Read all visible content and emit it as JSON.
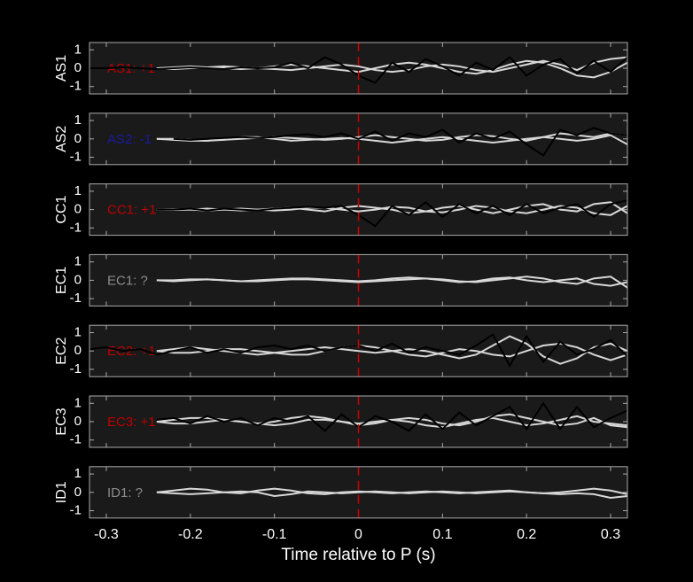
{
  "chart_data": [
    {
      "type": "line",
      "ylabel": "AS1",
      "annotation": "AS1: +1",
      "annotation_color": "#c00000",
      "x": [
        -0.32,
        -0.3,
        -0.28,
        -0.26,
        -0.24,
        -0.22,
        -0.2,
        -0.18,
        -0.16,
        -0.14,
        -0.12,
        -0.1,
        -0.08,
        -0.06,
        -0.04,
        -0.02,
        0,
        0.02,
        0.04,
        0.06,
        0.08,
        0.1,
        0.12,
        0.14,
        0.16,
        0.18,
        0.2,
        0.22,
        0.24,
        0.26,
        0.28,
        0.3,
        0.32
      ],
      "xlim": [
        -0.32,
        0.32
      ],
      "xticks": [
        -0.3,
        -0.2,
        -0.1,
        0,
        0.1,
        0.2,
        0.3
      ],
      "ylim": [
        -1.4,
        1.4
      ],
      "yticks": [
        1,
        0,
        -1
      ],
      "vline": 0,
      "vline_color": "#cc0000",
      "series": [
        {
          "color": "#d8d8d8",
          "values": [
            null,
            null,
            null,
            null,
            0,
            0.05,
            0.1,
            0.05,
            0,
            -0.05,
            0,
            0.1,
            0.2,
            0.1,
            0,
            -0.1,
            -0.2,
            0,
            0.2,
            0.3,
            0.2,
            0,
            -0.2,
            -0.3,
            -0.1,
            0.2,
            0.4,
            0.3,
            0,
            -0.4,
            -0.5,
            -0.2,
            0.3
          ]
        },
        {
          "color": "#d8d8d8",
          "values": [
            null,
            null,
            null,
            null,
            0,
            -0.05,
            0,
            0.05,
            0.1,
            0.05,
            0,
            -0.05,
            -0.1,
            0,
            0.1,
            0.2,
            0.1,
            -0.1,
            -0.2,
            -0.1,
            0.1,
            0.2,
            0.1,
            -0.1,
            -0.2,
            0,
            0.2,
            0.4,
            0.2,
            -0.1,
            0.3,
            0.5,
            0.6
          ]
        },
        {
          "color": "#000000",
          "values": [
            0,
            0,
            0.05,
            0,
            -0.05,
            0,
            0.05,
            0,
            -0.05,
            0.05,
            0,
            0.05,
            0.3,
            0,
            0.6,
            0.2,
            -0.4,
            -0.8,
            0.3,
            -0.2,
            0.5,
            0.1,
            -0.4,
            0.3,
            -0.1,
            0.6,
            -0.4,
            0.2,
            0.5,
            -0.3,
            0.4,
            -0.2,
            0.6
          ]
        }
      ]
    },
    {
      "type": "line",
      "ylabel": "AS2",
      "annotation": "AS2: -1",
      "annotation_color": "#1a1aa0",
      "x": [
        -0.32,
        -0.3,
        -0.28,
        -0.26,
        -0.24,
        -0.22,
        -0.2,
        -0.18,
        -0.16,
        -0.14,
        -0.12,
        -0.1,
        -0.08,
        -0.06,
        -0.04,
        -0.02,
        0,
        0.02,
        0.04,
        0.06,
        0.08,
        0.1,
        0.12,
        0.14,
        0.16,
        0.18,
        0.2,
        0.22,
        0.24,
        0.26,
        0.28,
        0.3,
        0.32
      ],
      "xlim": [
        -0.32,
        0.32
      ],
      "xticks": [
        -0.3,
        -0.2,
        -0.1,
        0,
        0.1,
        0.2,
        0.3
      ],
      "ylim": [
        -1.4,
        1.4
      ],
      "yticks": [
        1,
        0,
        -1
      ],
      "vline": 0,
      "vline_color": "#cc0000",
      "series": [
        {
          "color": "#d8d8d8",
          "values": [
            null,
            null,
            null,
            null,
            0,
            0,
            -0.05,
            -0.1,
            -0.05,
            0,
            0.05,
            0.1,
            0.05,
            0,
            -0.05,
            0,
            0.1,
            0.2,
            0.1,
            0,
            -0.1,
            -0.05,
            0.1,
            0.2,
            0.15,
            0,
            -0.1,
            0.1,
            0.3,
            0.2,
            0.1,
            0.3,
            0.2
          ]
        },
        {
          "color": "#d8d8d8",
          "values": [
            null,
            null,
            null,
            null,
            0,
            -0.05,
            -0.1,
            -0.1,
            0,
            0.1,
            0.1,
            0,
            -0.1,
            -0.05,
            0,
            0.05,
            0,
            -0.1,
            -0.2,
            -0.1,
            0,
            0.1,
            0,
            -0.1,
            -0.2,
            -0.1,
            0,
            0.1,
            0,
            -0.1,
            0,
            0.2,
            -0.3
          ]
        },
        {
          "color": "#000000",
          "values": [
            null,
            null,
            null,
            null,
            null,
            0,
            -0.05,
            0,
            0.05,
            0.1,
            0.05,
            0.1,
            0.2,
            0.25,
            0.1,
            0.3,
            0,
            0.4,
            -0.1,
            0.3,
            0.1,
            0.5,
            -0.2,
            0.3,
            0,
            0.4,
            -0.3,
            -0.9,
            0.5,
            0.2,
            0.6,
            0.3,
            0.2
          ]
        }
      ]
    },
    {
      "type": "line",
      "ylabel": "CC1",
      "annotation": "CC1: +1",
      "annotation_color": "#c00000",
      "x": [
        -0.32,
        -0.3,
        -0.28,
        -0.26,
        -0.24,
        -0.22,
        -0.2,
        -0.18,
        -0.16,
        -0.14,
        -0.12,
        -0.1,
        -0.08,
        -0.06,
        -0.04,
        -0.02,
        0,
        0.02,
        0.04,
        0.06,
        0.08,
        0.1,
        0.12,
        0.14,
        0.16,
        0.18,
        0.2,
        0.22,
        0.24,
        0.26,
        0.28,
        0.3,
        0.32
      ],
      "xlim": [
        -0.32,
        0.32
      ],
      "xticks": [
        -0.3,
        -0.2,
        -0.1,
        0,
        0.1,
        0.2,
        0.3
      ],
      "ylim": [
        -1.4,
        1.4
      ],
      "yticks": [
        1,
        0,
        -1
      ],
      "vline": 0,
      "vline_color": "#cc0000",
      "series": [
        {
          "color": "#d8d8d8",
          "values": [
            null,
            null,
            null,
            null,
            0,
            0.02,
            0,
            -0.05,
            0,
            0.05,
            0,
            -0.05,
            0,
            0.1,
            0.1,
            0,
            -0.1,
            0,
            0.15,
            0.1,
            -0.1,
            -0.15,
            0,
            0.2,
            0.1,
            -0.1,
            -0.2,
            0,
            0.2,
            0.1,
            -0.2,
            -0.3,
            0.2
          ]
        },
        {
          "color": "#d8d8d8",
          "values": [
            null,
            null,
            null,
            null,
            0,
            -0.02,
            0,
            0.05,
            0,
            -0.05,
            0,
            0.05,
            0.1,
            0,
            -0.1,
            0.1,
            0.2,
            0.1,
            0,
            -0.2,
            -0.1,
            0.1,
            0.2,
            0,
            -0.2,
            0,
            0.2,
            0.3,
            0,
            -0.1,
            0.3,
            0.4,
            -0.2
          ]
        },
        {
          "color": "#000000",
          "values": [
            null,
            null,
            null,
            null,
            0,
            0,
            0.05,
            -0.05,
            0.05,
            0,
            -0.05,
            0.05,
            0.1,
            0.15,
            0.1,
            0.2,
            -0.3,
            -0.9,
            0.2,
            -0.3,
            0.4,
            -0.4,
            0.3,
            -0.2,
            0.2,
            -0.3,
            0.3,
            -0.2,
            0.1,
            0.3,
            -0.4,
            0.3,
            0.5
          ]
        }
      ]
    },
    {
      "type": "line",
      "ylabel": "EC1",
      "annotation": "EC1: ?",
      "annotation_color": "#8c8c8c",
      "x": [
        -0.32,
        -0.3,
        -0.28,
        -0.26,
        -0.24,
        -0.22,
        -0.2,
        -0.18,
        -0.16,
        -0.14,
        -0.12,
        -0.1,
        -0.08,
        -0.06,
        -0.04,
        -0.02,
        0,
        0.02,
        0.04,
        0.06,
        0.08,
        0.1,
        0.12,
        0.14,
        0.16,
        0.18,
        0.2,
        0.22,
        0.24,
        0.26,
        0.28,
        0.3,
        0.32
      ],
      "xlim": [
        -0.32,
        0.32
      ],
      "xticks": [
        -0.3,
        -0.2,
        -0.1,
        0,
        0.1,
        0.2,
        0.3
      ],
      "ylim": [
        -1.4,
        1.4
      ],
      "yticks": [
        1,
        0,
        -1
      ],
      "vline": 0,
      "vline_color": "#cc0000",
      "series": [
        {
          "color": "#d8d8d8",
          "values": [
            null,
            null,
            null,
            null,
            0,
            0,
            0.05,
            0.05,
            0,
            -0.05,
            0,
            0.05,
            0.1,
            0.1,
            0.05,
            0,
            -0.05,
            0,
            0.1,
            0.15,
            0.1,
            0,
            -0.1,
            -0.05,
            0.1,
            0.15,
            0,
            -0.1,
            0,
            0.1,
            -0.2,
            -0.3,
            -0.1
          ]
        },
        {
          "color": "#d8d8d8",
          "values": [
            null,
            null,
            null,
            null,
            0,
            -0.05,
            0,
            0.05,
            0,
            -0.05,
            -0.05,
            0,
            0.05,
            0.05,
            0,
            -0.05,
            -0.1,
            -0.05,
            0,
            0.05,
            0.1,
            0.05,
            -0.05,
            -0.1,
            0,
            0.1,
            0.2,
            0.1,
            -0.1,
            -0.2,
            0.1,
            0.2,
            -0.4
          ]
        }
      ]
    },
    {
      "type": "line",
      "ylabel": "EC2",
      "annotation": "EC2: +1",
      "annotation_color": "#c00000",
      "x": [
        -0.32,
        -0.3,
        -0.28,
        -0.26,
        -0.24,
        -0.22,
        -0.2,
        -0.18,
        -0.16,
        -0.14,
        -0.12,
        -0.1,
        -0.08,
        -0.06,
        -0.04,
        -0.02,
        0,
        0.02,
        0.04,
        0.06,
        0.08,
        0.1,
        0.12,
        0.14,
        0.16,
        0.18,
        0.2,
        0.22,
        0.24,
        0.26,
        0.28,
        0.3,
        0.32
      ],
      "xlim": [
        -0.32,
        0.32
      ],
      "xticks": [
        -0.3,
        -0.2,
        -0.1,
        0,
        0.1,
        0.2,
        0.3
      ],
      "ylim": [
        -1.4,
        1.4
      ],
      "yticks": [
        1,
        0,
        -1
      ],
      "vline": 0,
      "vline_color": "#cc0000",
      "series": [
        {
          "color": "#d8d8d8",
          "values": [
            null,
            null,
            null,
            null,
            0,
            0.1,
            0.2,
            0.1,
            0,
            -0.1,
            -0.2,
            -0.1,
            0,
            0.1,
            0.2,
            0.1,
            0,
            -0.1,
            0,
            0.1,
            0,
            -0.2,
            -0.4,
            -0.2,
            0.3,
            0.8,
            0.4,
            -0.3,
            -0.7,
            -0.4,
            0.2,
            0.4,
            0
          ]
        },
        {
          "color": "#d8d8d8",
          "values": [
            null,
            null,
            null,
            null,
            0,
            -0.1,
            -0.1,
            0,
            0.1,
            0.1,
            0,
            -0.1,
            -0.2,
            -0.2,
            0,
            0.2,
            0.3,
            0.2,
            0,
            -0.2,
            -0.3,
            -0.1,
            0.1,
            0,
            -0.2,
            -0.3,
            0,
            0.3,
            0.4,
            0.2,
            -0.2,
            -0.5,
            -0.2
          ]
        },
        {
          "color": "#000000",
          "values": [
            0.1,
            0.2,
            0,
            0.1,
            -0.2,
            0,
            0.2,
            -0.1,
            0.1,
            -0.1,
            0.2,
            0.3,
            0.1,
            0.3,
            0,
            0.2,
            0.3,
            0,
            0.4,
            -0.1,
            0.2,
            0,
            -0.2,
            0.3,
            0.9,
            -0.8,
            0.8,
            -0.6,
            0.5,
            -0.2,
            0.1,
            0.6,
            -0.3
          ]
        }
      ]
    },
    {
      "type": "line",
      "ylabel": "EC3",
      "annotation": "EC3: +1",
      "annotation_color": "#c00000",
      "x": [
        -0.32,
        -0.3,
        -0.28,
        -0.26,
        -0.24,
        -0.22,
        -0.2,
        -0.18,
        -0.16,
        -0.14,
        -0.12,
        -0.1,
        -0.08,
        -0.06,
        -0.04,
        -0.02,
        0,
        0.02,
        0.04,
        0.06,
        0.08,
        0.1,
        0.12,
        0.14,
        0.16,
        0.18,
        0.2,
        0.22,
        0.24,
        0.26,
        0.28,
        0.3,
        0.32
      ],
      "xlim": [
        -0.32,
        0.32
      ],
      "xticks": [
        -0.3,
        -0.2,
        -0.1,
        0,
        0.1,
        0.2,
        0.3
      ],
      "ylim": [
        -1.4,
        1.4
      ],
      "yticks": [
        1,
        0,
        -1
      ],
      "vline": 0,
      "vline_color": "#cc0000",
      "series": [
        {
          "color": "#d8d8d8",
          "values": [
            null,
            null,
            null,
            null,
            0,
            0.1,
            0.2,
            0.2,
            0.1,
            0,
            -0.1,
            0,
            0.2,
            0.3,
            0.2,
            0,
            -0.2,
            -0.1,
            0.1,
            0.2,
            0.1,
            -0.1,
            -0.2,
            0,
            0.3,
            0.4,
            0.2,
            0,
            -0.2,
            -0.1,
            0.2,
            -0.2,
            -0.3
          ]
        },
        {
          "color": "#d8d8d8",
          "values": [
            null,
            null,
            null,
            null,
            0,
            -0.1,
            -0.1,
            0,
            0.1,
            0,
            -0.1,
            -0.2,
            -0.1,
            0.1,
            0.1,
            0,
            -0.1,
            0,
            0.1,
            0,
            -0.2,
            -0.3,
            -0.1,
            0.1,
            0.2,
            0,
            -0.2,
            -0.1,
            0.1,
            0.3,
            0,
            -0.1,
            -0.2
          ]
        },
        {
          "color": "#000000",
          "values": [
            null,
            null,
            null,
            null,
            0.1,
            0.2,
            -0.1,
            0.3,
            0,
            0.2,
            -0.2,
            0.2,
            0,
            0.3,
            -0.5,
            0.4,
            -0.3,
            0.3,
            0,
            -0.5,
            0.4,
            -0.4,
            0.5,
            -0.2,
            0.3,
            0.8,
            -0.4,
            1,
            -0.4,
            0.8,
            -0.3,
            0.2,
            0.6
          ]
        }
      ]
    },
    {
      "type": "line",
      "ylabel": "ID1",
      "annotation": "ID1: ?",
      "annotation_color": "#8c8c8c",
      "xlabel": "Time relative to P (s)",
      "x": [
        -0.32,
        -0.3,
        -0.28,
        -0.26,
        -0.24,
        -0.22,
        -0.2,
        -0.18,
        -0.16,
        -0.14,
        -0.12,
        -0.1,
        -0.08,
        -0.06,
        -0.04,
        -0.02,
        0,
        0.02,
        0.04,
        0.06,
        0.08,
        0.1,
        0.12,
        0.14,
        0.16,
        0.18,
        0.2,
        0.22,
        0.24,
        0.26,
        0.28,
        0.3,
        0.32
      ],
      "xlim": [
        -0.32,
        0.32
      ],
      "xticks": [
        -0.3,
        -0.2,
        -0.1,
        0,
        0.1,
        0.2,
        0.3
      ],
      "ylim": [
        -1.4,
        1.4
      ],
      "yticks": [
        1,
        0,
        -1
      ],
      "vline": 0,
      "vline_color": "#cc0000",
      "series": [
        {
          "color": "#d8d8d8",
          "values": [
            null,
            null,
            null,
            null,
            0,
            0.1,
            0.2,
            0.15,
            0,
            -0.05,
            0.1,
            0.2,
            0.1,
            -0.05,
            -0.1,
            0,
            0.05,
            0,
            -0.05,
            0,
            0.05,
            0,
            -0.05,
            0,
            0.05,
            0.1,
            0,
            -0.05,
            0,
            0.1,
            0.2,
            0.1,
            -0.1
          ]
        },
        {
          "color": "#d8d8d8",
          "values": [
            null,
            null,
            null,
            null,
            0,
            -0.05,
            -0.1,
            -0.05,
            0,
            0.05,
            0,
            -0.2,
            -0.1,
            0.05,
            0,
            -0.05,
            0,
            0.05,
            0,
            -0.05,
            0,
            0.05,
            0,
            -0.05,
            0,
            0.05,
            0,
            -0.05,
            -0.1,
            -0.05,
            -0.1,
            -0.3,
            -0.2
          ]
        }
      ]
    }
  ]
}
